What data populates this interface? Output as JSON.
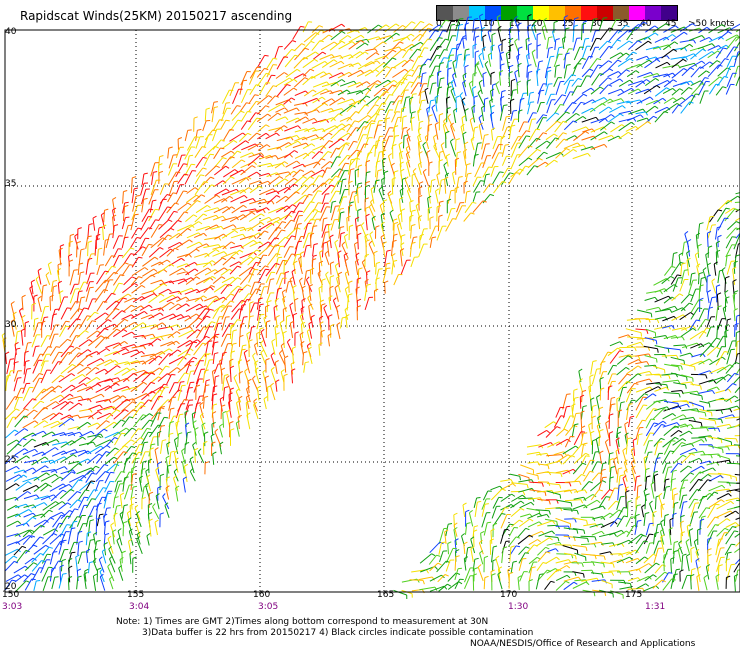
{
  "title": "Rapidscat Winds(25KM) 20150217 ascending",
  "legend": {
    "labels": [
      "0",
      "5",
      "10",
      "15",
      "20",
      "25",
      "30",
      "35",
      "40",
      "45",
      ">50 knots"
    ],
    "colors": [
      "#555555",
      "#8c8c8c",
      "#00c8ff",
      "#0050ff",
      "#00a000",
      "#00e040",
      "#ffff00",
      "#ffc000",
      "#ff7000",
      "#ff1010",
      "#cc0000",
      "#8b5a2b",
      "#ff00ff",
      "#7a00cc",
      "#40008b"
    ]
  },
  "axes": {
    "lon_labels": [
      "150",
      "155",
      "160",
      "165",
      "170",
      "175"
    ],
    "lat_labels": [
      "40",
      "35",
      "30",
      "25",
      "20"
    ],
    "times": [
      "3:03",
      "3:04",
      "3:05",
      "1:30",
      "1:31"
    ]
  },
  "notes": {
    "line1": "Note: 1) Times are GMT 2)Times along bottom correspond to measurement at 30N",
    "line2": "3)Data buffer is 22 hrs from 20150217 4) Black circles indicate possible contamination"
  },
  "credit": "NOAA/NESDIS/Office of Research and Applications"
}
